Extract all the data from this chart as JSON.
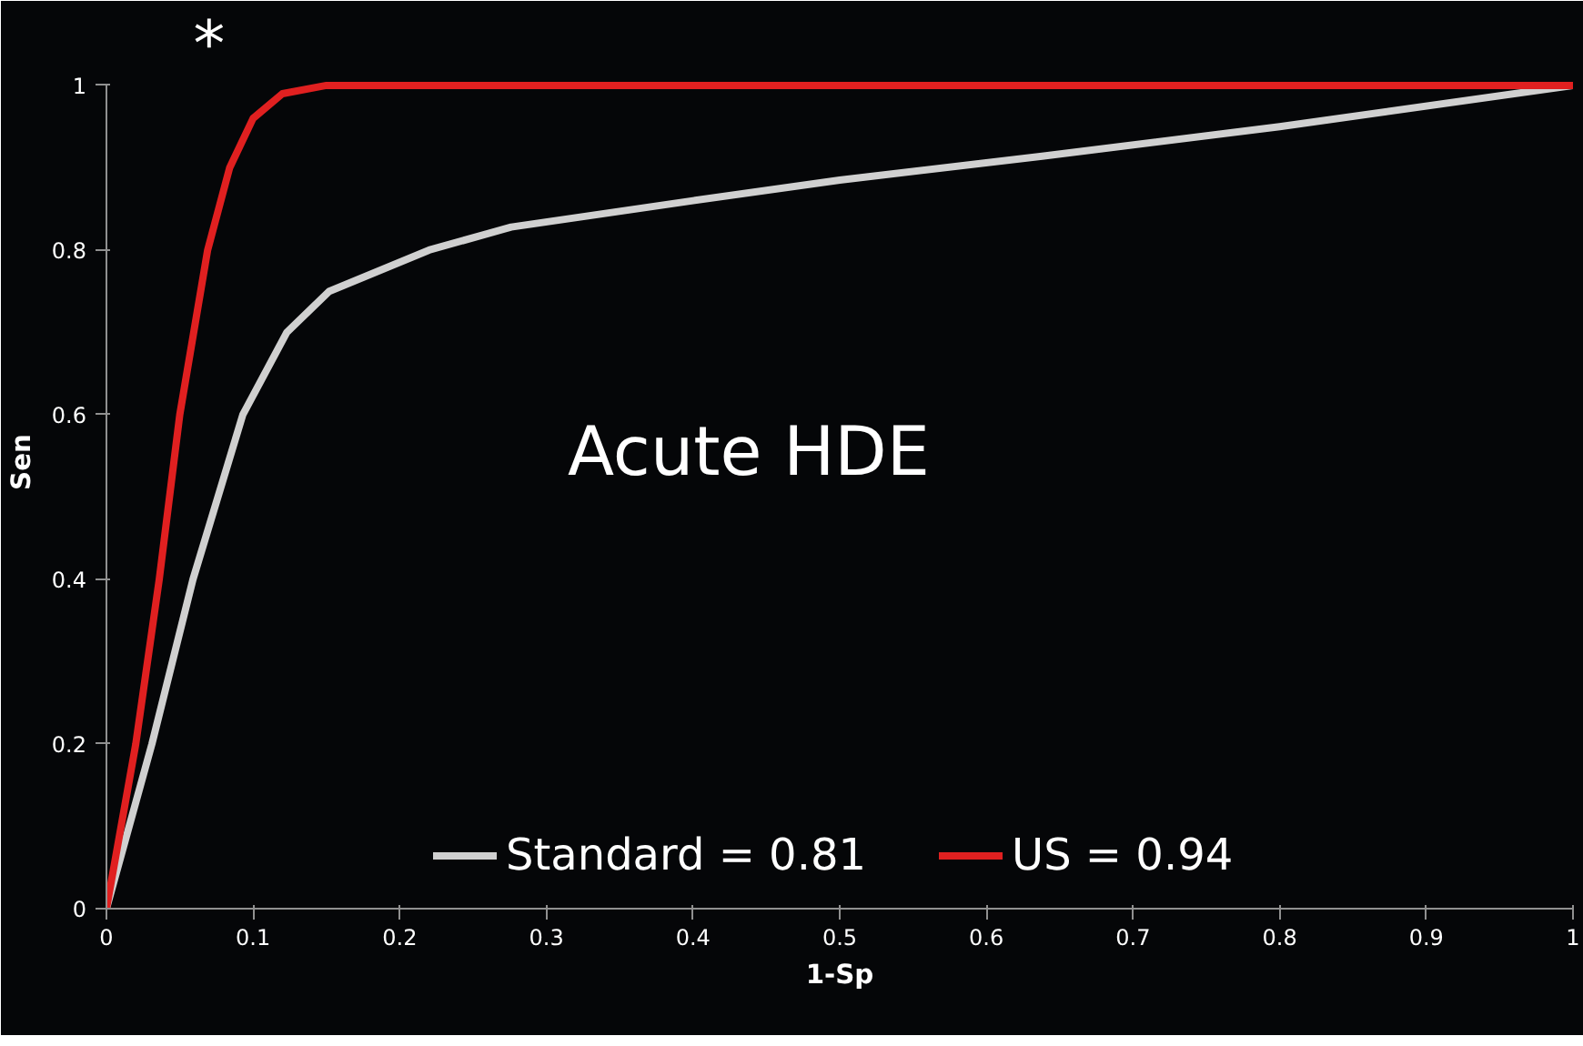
{
  "chart_data": {
    "type": "line",
    "xlabel": "1-Sp",
    "ylabel": "Sen",
    "xlim": [
      0,
      1
    ],
    "xticks": [
      0,
      0.1,
      0.2,
      0.3,
      0.4,
      0.5,
      0.6,
      0.7,
      0.8,
      0.9,
      1
    ],
    "ylim": [
      0,
      1
    ],
    "yticks": [
      0,
      0.2,
      0.4,
      0.6,
      0.8,
      1
    ],
    "grid": false,
    "legend": "bottom",
    "line_style": "solid",
    "marker": "none",
    "series": [
      {
        "name": "Standard = 0.81",
        "color": "#d0d0d0",
        "x": [
          0,
          0.031,
          0.059,
          0.093,
          0.123,
          0.152,
          0.22,
          0.276,
          0.4,
          0.5,
          0.638,
          0.8,
          1
        ],
        "values": [
          0,
          0.2,
          0.4,
          0.6,
          0.7,
          0.75,
          0.8,
          0.828,
          0.86,
          0.885,
          0.914,
          0.95,
          1
        ]
      },
      {
        "name": "US = 0.94",
        "color": "#e02020",
        "x": [
          0,
          0.02,
          0.036,
          0.05,
          0.069,
          0.084,
          0.1,
          0.12,
          0.15,
          1
        ],
        "values": [
          0,
          0.2,
          0.4,
          0.6,
          0.8,
          0.9,
          0.96,
          0.99,
          1,
          1
        ]
      }
    ],
    "annotations": [
      "Acute HDE",
      "*"
    ]
  }
}
